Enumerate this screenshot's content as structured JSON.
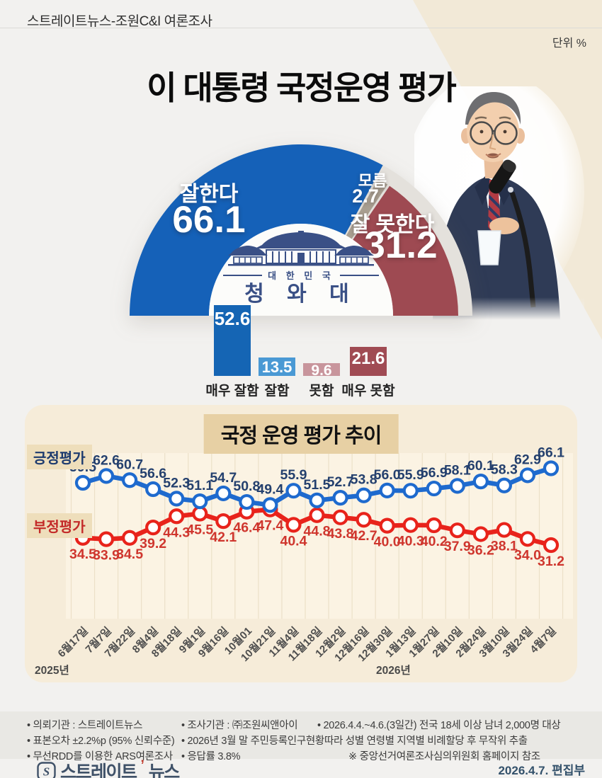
{
  "page": {
    "header": "스트레이트뉴스-조원C&I 여론조사",
    "unit_note": "단위 %",
    "title": "이 대통령 국정운영 평가"
  },
  "blue_house": {
    "country": "대 한 민 국",
    "name": "청 와 대"
  },
  "chart_data": [
    {
      "type": "pie",
      "subtype": "semicircle-donut",
      "title": "이 대통령 국정운영 평가",
      "unit": "%",
      "labels": [
        "잘한다",
        "모름",
        "잘 못한다"
      ],
      "values": [
        66.1,
        2.7,
        31.2
      ],
      "colors": [
        "#1561b8",
        "#a99f91",
        "#9e4a52"
      ],
      "ring_bg": "#e4e1dc"
    },
    {
      "type": "bar",
      "categories": [
        "매우 잘함",
        "잘함",
        "못함",
        "매우 못함"
      ],
      "values": [
        52.6,
        13.5,
        9.6,
        21.6
      ],
      "colors": [
        "#1565b4",
        "#4a99d4",
        "#c8959c",
        "#a04b53"
      ],
      "ylim": [
        0,
        60
      ]
    },
    {
      "type": "line",
      "title": "국정 운영 평가 추이",
      "x": [
        "6월17일",
        "7월7일",
        "7월22일",
        "8월4일",
        "8월18일",
        "9월1일",
        "9월16일",
        "10월01",
        "10월21일",
        "11월4일",
        "11월18일",
        "12월2일",
        "12월16일",
        "12월30일",
        "1월13일",
        "1월27일",
        "2월10일",
        "2월24일",
        "3월10일",
        "3월24일",
        "4월7일"
      ],
      "year_labels": [
        {
          "text": "2025년",
          "x_local": 14
        },
        {
          "text": "2026년",
          "x_local": 496
        }
      ],
      "series": [
        {
          "name": "긍정평가",
          "color": "#1e6ace",
          "label_color": "#24406e",
          "values": [
            59.5,
            62.6,
            60.7,
            56.6,
            52.3,
            51.1,
            54.7,
            50.8,
            49.4,
            55.9,
            51.5,
            52.7,
            53.8,
            56.0,
            55.9,
            56.9,
            58.1,
            60.1,
            58.3,
            62.9,
            66.1
          ]
        },
        {
          "name": "부정평가",
          "color": "#e8231b",
          "label_color": "#cf362e",
          "values": [
            34.5,
            33.9,
            34.5,
            39.2,
            44.3,
            45.5,
            42.1,
            46.4,
            47.4,
            40.4,
            44.8,
            43.8,
            42.7,
            40.0,
            40.3,
            40.2,
            37.9,
            36.2,
            38.1,
            34.0,
            31.2
          ]
        }
      ],
      "ylim": [
        28,
        72
      ],
      "grid": "vertical",
      "legend_position": "left"
    }
  ],
  "footnotes": {
    "rows": [
      [
        {
          "bullet": true,
          "text": "의뢰기관 : 스트레이트뉴스"
        },
        {
          "bullet": true,
          "text": "조사기관 : ㈜조원씨앤아이"
        },
        {
          "bullet": true,
          "text": "2026.4.4.~4.6.(3일간) 전국 18세 이상 남녀 2,000명 대상"
        }
      ],
      [
        {
          "bullet": true,
          "text": "표본오차 ±2.2%p (95% 신뢰수준)"
        },
        {
          "bullet": true,
          "text": "2026년 3월 말 주민등록인구현황따라 성별 연령별 지역별 비례할당 후 무작위 추출"
        }
      ],
      [
        {
          "bullet": true,
          "text": "무선RDD를 이용한 ARS여론조사"
        },
        {
          "bullet": true,
          "text": "응답률 3.8%"
        },
        {
          "bullet": false,
          "text": "※ 중앙선거여론조사심의위원회 홈페이지 참조"
        }
      ]
    ]
  },
  "footer": {
    "brand_bold": "스트레이트",
    "brand_light": "뉴스",
    "credit": "2026.4.7.  편집부"
  }
}
